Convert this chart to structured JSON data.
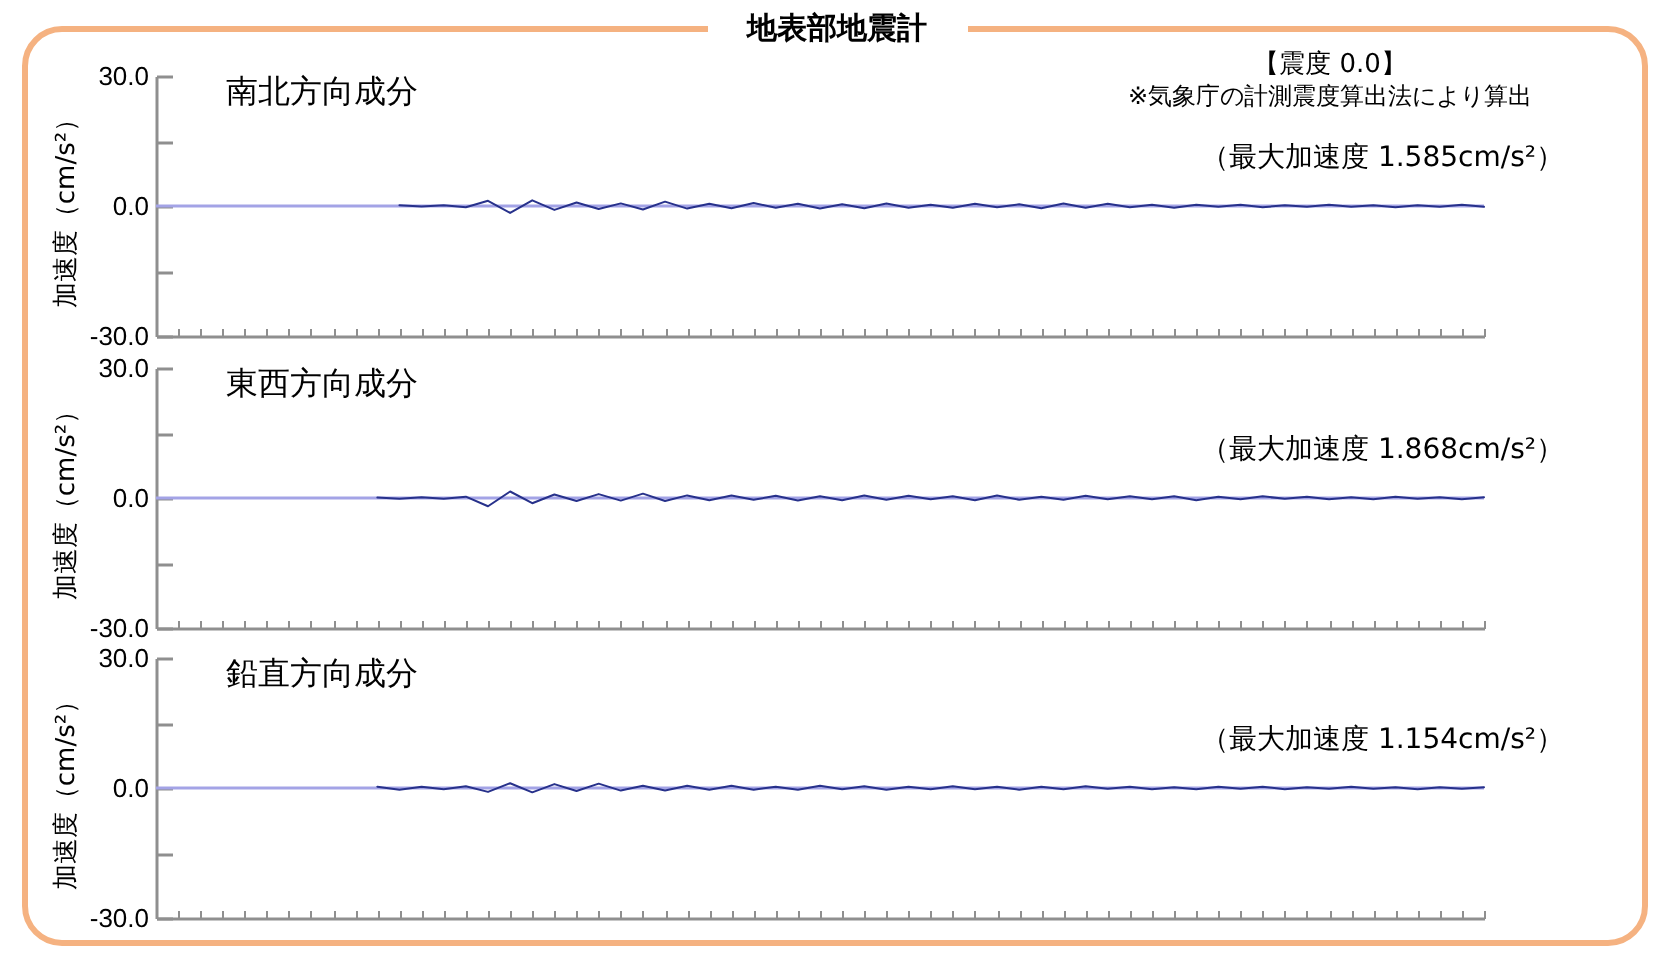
{
  "chart_data": [
    {
      "type": "other",
      "title": "地表部地震計",
      "annotations": [
        "【震度 0.0】",
        "※気象庁の計測震度算出法により算出"
      ]
    },
    {
      "type": "line",
      "title": "南北方向成分",
      "ylabel": "加速度（cm/s²）",
      "annotations": [
        "（最大加速度 1.585cm/s²）"
      ],
      "categories": [
        null,
        null,
        null,
        null,
        null,
        null,
        null,
        null,
        null,
        null,
        null,
        null,
        null,
        null,
        null,
        null,
        null,
        null,
        null,
        null,
        null,
        null,
        null,
        null,
        null,
        null,
        null,
        null,
        null,
        null,
        null,
        null,
        null,
        null,
        null,
        null,
        null,
        null,
        null,
        null,
        null,
        null,
        null,
        null,
        null,
        null,
        null,
        null,
        null,
        null,
        null,
        null,
        null,
        null,
        null,
        null,
        null,
        null,
        null,
        null,
        null
      ],
      "color": "#27318b",
      "values": [
        null,
        null,
        null,
        null,
        null,
        null,
        null,
        null,
        null,
        null,
        null,
        0.2,
        -0.1,
        0.2,
        -0.3,
        1.2,
        -1.6,
        1.3,
        -0.9,
        0.8,
        -0.7,
        0.6,
        -0.8,
        1.0,
        -0.6,
        0.5,
        -0.5,
        0.7,
        -0.4,
        0.5,
        -0.6,
        0.4,
        -0.5,
        0.6,
        -0.4,
        0.3,
        -0.4,
        0.5,
        -0.3,
        0.4,
        -0.5,
        0.6,
        -0.4,
        0.5,
        -0.3,
        0.3,
        -0.4,
        0.3,
        -0.2,
        0.3,
        -0.3,
        0.2,
        -0.2,
        0.3,
        -0.2,
        0.2,
        -0.3,
        0.2,
        -0.2,
        0.3,
        -0.2
      ],
      "ylim": [
        -30,
        30
      ],
      "yticks": [
        {
          "value": -30,
          "label": "-30.0"
        },
        {
          "value": -15,
          "label": null
        },
        {
          "value": 0,
          "label": "0.0"
        },
        {
          "value": 15,
          "label": null
        },
        {
          "value": 30,
          "label": "30.0"
        }
      ],
      "ref_lines": [
        {
          "axis": "y",
          "value": 0,
          "color": "#a3a3e6"
        }
      ],
      "tick_labels": "y"
    },
    {
      "type": "line",
      "title": "東西方向成分",
      "ylabel": "加速度（cm/s²）",
      "annotations": [
        "（最大加速度 1.868cm/s²）"
      ],
      "categories": [
        null,
        null,
        null,
        null,
        null,
        null,
        null,
        null,
        null,
        null,
        null,
        null,
        null,
        null,
        null,
        null,
        null,
        null,
        null,
        null,
        null,
        null,
        null,
        null,
        null,
        null,
        null,
        null,
        null,
        null,
        null,
        null,
        null,
        null,
        null,
        null,
        null,
        null,
        null,
        null,
        null,
        null,
        null,
        null,
        null,
        null,
        null,
        null,
        null,
        null,
        null,
        null,
        null,
        null,
        null,
        null,
        null,
        null,
        null,
        null,
        null
      ],
      "color": "#27318b",
      "values": [
        null,
        null,
        null,
        null,
        null,
        null,
        null,
        null,
        null,
        null,
        0.1,
        -0.2,
        0.2,
        -0.2,
        0.3,
        -1.9,
        1.5,
        -1.2,
        0.8,
        -0.7,
        0.9,
        -0.6,
        1.0,
        -0.7,
        0.6,
        -0.5,
        0.6,
        -0.4,
        0.5,
        -0.6,
        0.4,
        -0.5,
        0.6,
        -0.4,
        0.5,
        -0.3,
        0.4,
        -0.5,
        0.6,
        -0.4,
        0.3,
        -0.4,
        0.5,
        -0.3,
        0.4,
        -0.3,
        0.4,
        -0.5,
        0.3,
        -0.3,
        0.4,
        -0.2,
        0.3,
        -0.3,
        0.2,
        -0.3,
        0.3,
        -0.2,
        0.2,
        -0.3,
        0.2
      ],
      "ylim": [
        -30,
        30
      ],
      "yticks": [
        {
          "value": -30,
          "label": "-30.0"
        },
        {
          "value": -15,
          "label": null
        },
        {
          "value": 0,
          "label": "0.0"
        },
        {
          "value": 15,
          "label": null
        },
        {
          "value": 30,
          "label": "30.0"
        }
      ],
      "ref_lines": [
        {
          "axis": "y",
          "value": 0,
          "color": "#a3a3e6"
        }
      ],
      "tick_labels": "y"
    },
    {
      "type": "line",
      "title": "鉛直方向成分",
      "ylabel": "加速度（cm/s²）",
      "annotations": [
        "（最大加速度 1.154cm/s²）"
      ],
      "categories": [
        null,
        null,
        null,
        null,
        null,
        null,
        null,
        null,
        null,
        null,
        null,
        null,
        null,
        null,
        null,
        null,
        null,
        null,
        null,
        null,
        null,
        null,
        null,
        null,
        null,
        null,
        null,
        null,
        null,
        null,
        null,
        null,
        null,
        null,
        null,
        null,
        null,
        null,
        null,
        null,
        null,
        null,
        null,
        null,
        null,
        null,
        null,
        null,
        null,
        null,
        null,
        null,
        null,
        null,
        null,
        null,
        null,
        null,
        null,
        null,
        null
      ],
      "color": "#27318b",
      "values": [
        null,
        null,
        null,
        null,
        null,
        null,
        null,
        null,
        null,
        null,
        0.3,
        -0.4,
        0.3,
        -0.3,
        0.4,
        -0.9,
        1.1,
        -1.0,
        0.9,
        -0.7,
        1.0,
        -0.6,
        0.5,
        -0.6,
        0.5,
        -0.4,
        0.5,
        -0.4,
        0.3,
        -0.4,
        0.5,
        -0.3,
        0.4,
        -0.4,
        0.3,
        -0.3,
        0.4,
        -0.3,
        0.3,
        -0.4,
        0.3,
        -0.3,
        0.4,
        -0.2,
        0.3,
        -0.3,
        0.2,
        -0.3,
        0.3,
        -0.2,
        0.3,
        -0.3,
        0.2,
        -0.2,
        0.3,
        -0.2,
        0.2,
        -0.3,
        0.2,
        -0.2,
        0.2
      ],
      "ylim": [
        -30,
        30
      ],
      "yticks": [
        {
          "value": -30,
          "label": "-30.0"
        },
        {
          "value": -15,
          "label": null
        },
        {
          "value": 0,
          "label": "0.0"
        },
        {
          "value": 15,
          "label": null
        },
        {
          "value": 30,
          "label": "30.0"
        }
      ],
      "ref_lines": [
        {
          "axis": "y",
          "value": 0,
          "color": "#a3a3e6"
        }
      ],
      "tick_labels": "y"
    }
  ]
}
